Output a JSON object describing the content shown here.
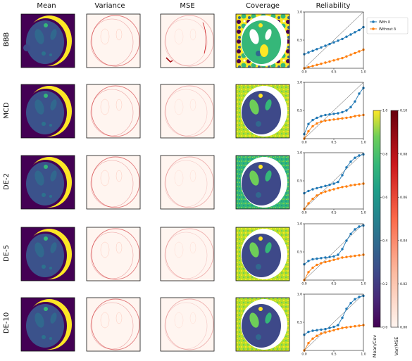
{
  "columns": [
    "Mean",
    "Variance",
    "MSE",
    "Coverage",
    "Reliability"
  ],
  "rows": [
    "BBB",
    "MCD",
    "DE-2",
    "DE-5",
    "DE-10"
  ],
  "legend": {
    "with_delta": "With δ",
    "without_delta": "Without δ"
  },
  "colorbars": {
    "viridis": {
      "label": "Mean/Cov",
      "ticks": [
        "0.0",
        "0.2",
        "0.4",
        "0.6",
        "0.8",
        "1.0"
      ]
    },
    "reds": {
      "label": "Var/MSE",
      "ticks": [
        "0.00",
        "0.02",
        "0.04",
        "0.06",
        "0.08",
        "0.10"
      ]
    }
  },
  "colors": {
    "with_delta": "#1f77b4",
    "without_delta": "#ff7f0e",
    "viridis_dark": "#440154",
    "viridis_yellow": "#fde725"
  },
  "chart_data": {
    "type": "line",
    "x_tick_labels": [
      "0.0",
      "0.5",
      "1.0"
    ],
    "y_tick_labels": [
      "0.5",
      "1.0"
    ],
    "xlim": [
      0,
      1
    ],
    "ylim": [
      0,
      1
    ],
    "x": [
      0.0,
      0.071,
      0.143,
      0.214,
      0.286,
      0.357,
      0.429,
      0.5,
      0.571,
      0.643,
      0.714,
      0.786,
      0.857,
      0.929,
      1.0
    ],
    "panels": [
      {
        "row": "BBB",
        "series": [
          {
            "name": "With δ",
            "values": [
              0.25,
              0.28,
              0.31,
              0.34,
              0.37,
              0.4,
              0.43,
              0.46,
              0.49,
              0.52,
              0.56,
              0.6,
              0.64,
              0.68,
              0.73
            ]
          },
          {
            "name": "Without δ",
            "values": [
              0.0,
              0.02,
              0.04,
              0.06,
              0.08,
              0.1,
              0.12,
              0.14,
              0.16,
              0.18,
              0.21,
              0.24,
              0.27,
              0.3,
              0.33
            ]
          }
        ]
      },
      {
        "row": "MCD",
        "series": [
          {
            "name": "With δ",
            "values": [
              0.08,
              0.26,
              0.33,
              0.37,
              0.4,
              0.42,
              0.43,
              0.44,
              0.45,
              0.47,
              0.5,
              0.56,
              0.66,
              0.8,
              0.9
            ]
          },
          {
            "name": "Without δ",
            "values": [
              0.0,
              0.13,
              0.22,
              0.27,
              0.3,
              0.32,
              0.33,
              0.34,
              0.35,
              0.36,
              0.37,
              0.38,
              0.4,
              0.41,
              0.42
            ]
          }
        ]
      },
      {
        "row": "DE-2",
        "series": [
          {
            "name": "With δ",
            "values": [
              0.28,
              0.32,
              0.35,
              0.37,
              0.39,
              0.41,
              0.43,
              0.45,
              0.48,
              0.6,
              0.74,
              0.84,
              0.91,
              0.95,
              0.97
            ]
          },
          {
            "name": "Without δ",
            "values": [
              0.0,
              0.1,
              0.18,
              0.24,
              0.28,
              0.31,
              0.33,
              0.35,
              0.37,
              0.39,
              0.4,
              0.42,
              0.43,
              0.44,
              0.45
            ]
          }
        ]
      },
      {
        "row": "DE-5",
        "series": [
          {
            "name": "With δ",
            "values": [
              0.28,
              0.34,
              0.37,
              0.38,
              0.39,
              0.4,
              0.41,
              0.42,
              0.45,
              0.55,
              0.7,
              0.82,
              0.9,
              0.95,
              0.97
            ]
          },
          {
            "name": "Without δ",
            "values": [
              0.0,
              0.14,
              0.22,
              0.27,
              0.3,
              0.32,
              0.34,
              0.36,
              0.38,
              0.4,
              0.41,
              0.42,
              0.43,
              0.44,
              0.45
            ]
          }
        ]
      },
      {
        "row": "DE-10",
        "series": [
          {
            "name": "With δ",
            "values": [
              0.28,
              0.33,
              0.35,
              0.36,
              0.37,
              0.38,
              0.4,
              0.42,
              0.45,
              0.58,
              0.74,
              0.84,
              0.91,
              0.95,
              0.97
            ]
          },
          {
            "name": "Without δ",
            "values": [
              0.0,
              0.13,
              0.21,
              0.26,
              0.3,
              0.32,
              0.34,
              0.36,
              0.38,
              0.4,
              0.41,
              0.42,
              0.43,
              0.44,
              0.45
            ]
          }
        ]
      }
    ]
  }
}
